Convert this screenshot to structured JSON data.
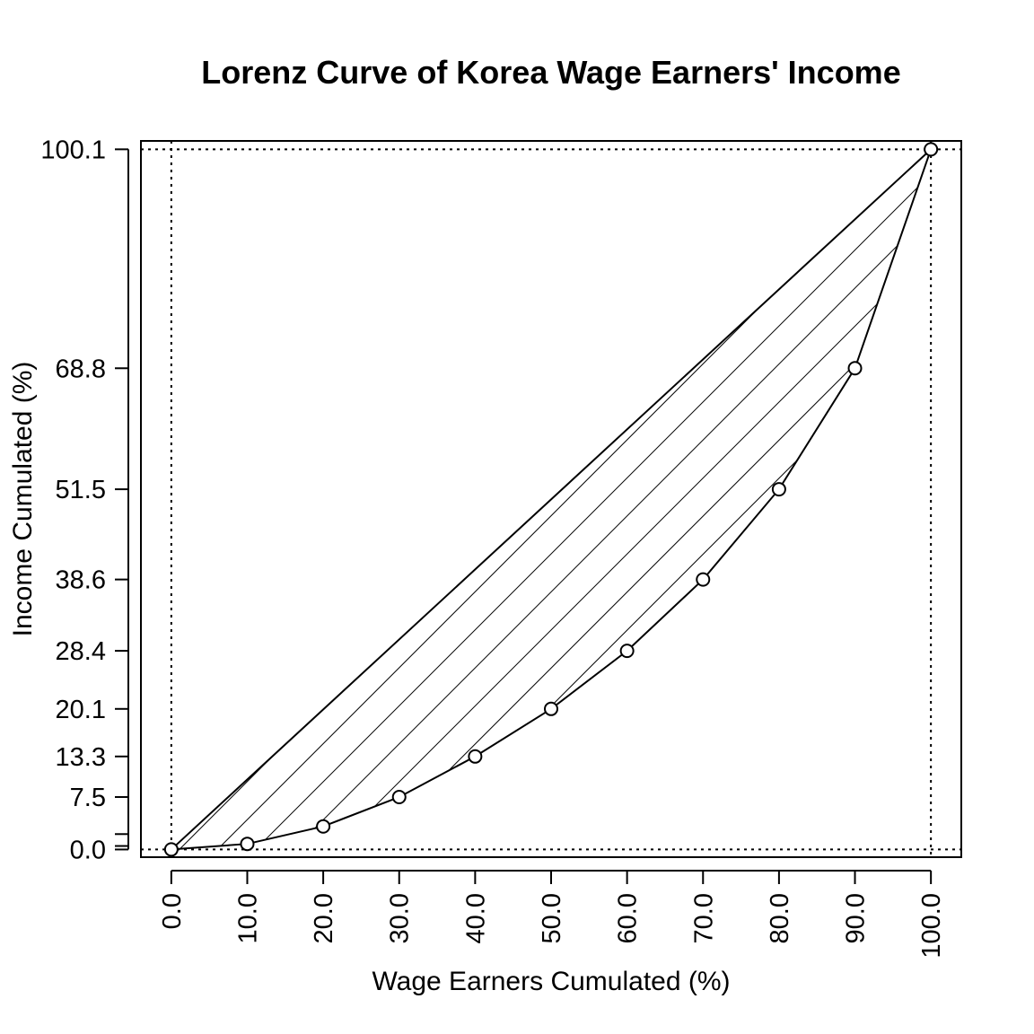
{
  "chart_data": {
    "type": "line",
    "title": "Lorenz Curve of Korea Wage Earners' Income",
    "xlabel": "Wage Earners Cumulated (%)",
    "ylabel": "Income Cumulated (%)",
    "xlim": [
      -4,
      104
    ],
    "ylim": [
      -1.1,
      101.3
    ],
    "x_ticks": [
      0,
      10,
      20,
      30,
      40,
      50,
      60,
      70,
      80,
      90,
      100
    ],
    "x_tick_labels": [
      "0.0",
      "10.0",
      "20.0",
      "30.0",
      "40.0",
      "50.0",
      "60.0",
      "70.0",
      "80.0",
      "90.0",
      "100.0"
    ],
    "y_ticks": [
      0,
      0.5,
      2.2,
      7.5,
      13.3,
      20.1,
      28.4,
      38.6,
      51.5,
      68.8,
      100.1
    ],
    "y_tick_labels": [
      "0.0",
      "",
      "",
      "7.5",
      "13.3",
      "20.1",
      "28.4",
      "38.6",
      "51.5",
      "68.8",
      "100.1"
    ],
    "series": [
      {
        "x": [
          0,
          10,
          20,
          30,
          40,
          50,
          60,
          70,
          80,
          90,
          100
        ],
        "y": [
          0.0,
          0.8,
          3.3,
          7.5,
          13.3,
          20.1,
          28.4,
          38.6,
          51.5,
          68.8,
          100.1
        ]
      }
    ],
    "reference_line": {
      "x": [
        0,
        100
      ],
      "y": [
        0,
        100.1
      ]
    },
    "reference_lines": {
      "vertical": [
        0,
        100
      ],
      "horizontal": [
        0,
        100.1
      ]
    },
    "fill": "hatched",
    "grid": false,
    "legend": "none"
  }
}
